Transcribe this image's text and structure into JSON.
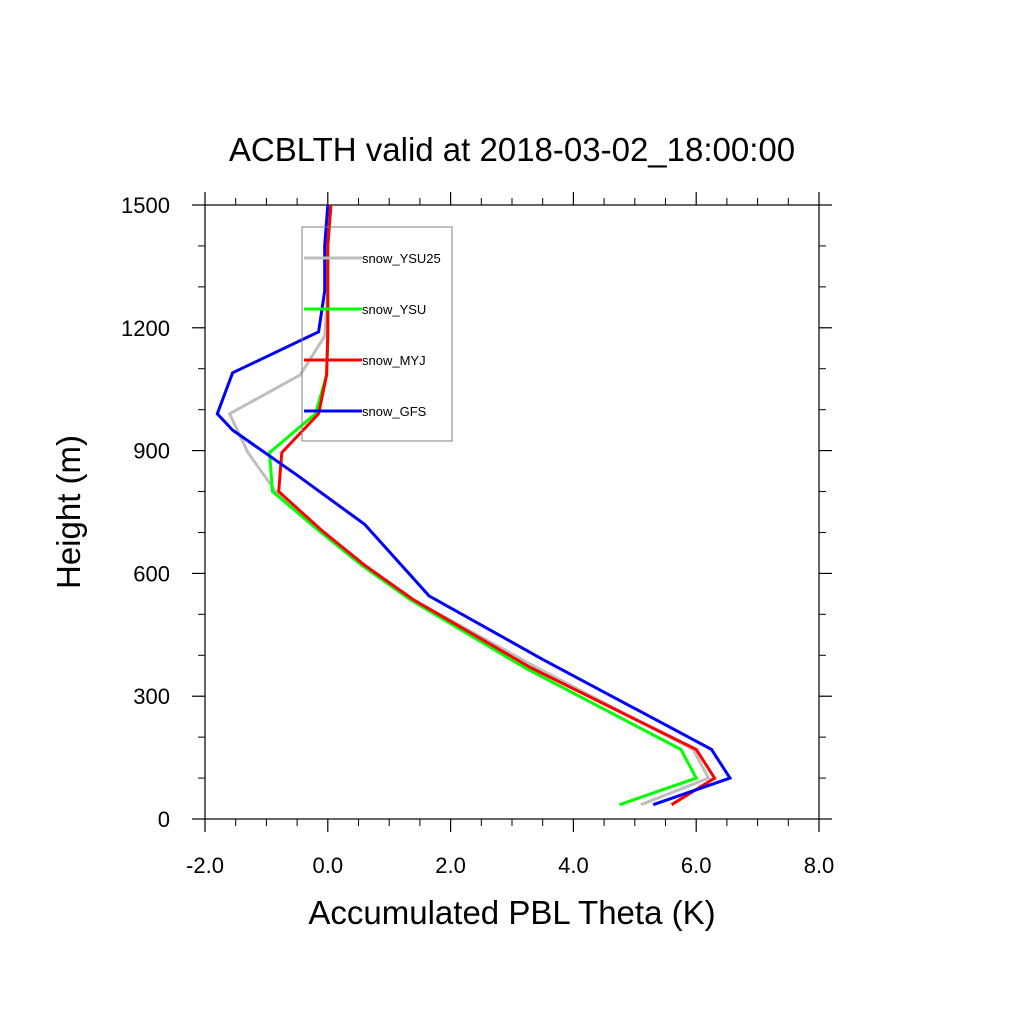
{
  "chart_data": {
    "type": "line",
    "title": "ACBLTH valid at 2018-03-02_18:00:00",
    "xlabel": "Accumulated PBL Theta (K)",
    "ylabel": "Height (m)",
    "xlim": [
      -2.0,
      8.0
    ],
    "ylim": [
      0,
      1500
    ],
    "xticks": [
      -2.0,
      0.0,
      2.0,
      4.0,
      6.0,
      8.0
    ],
    "xtick_labels": [
      "-2.0",
      "0.0",
      "2.0",
      "4.0",
      "6.0",
      "8.0"
    ],
    "yticks": [
      0,
      300,
      600,
      900,
      1200,
      1500
    ],
    "ytick_labels": [
      "0",
      "300",
      "600",
      "900",
      "1200",
      "1500"
    ],
    "grid": false,
    "legend_position": "top-left inside",
    "series": [
      {
        "name": "snow_YSU25",
        "color": "#bebebe",
        "points": [
          [
            5.1,
            35
          ],
          [
            6.2,
            100
          ],
          [
            5.95,
            170
          ],
          [
            3.4,
            370
          ],
          [
            1.4,
            535
          ],
          [
            0.6,
            620
          ],
          [
            -0.1,
            705
          ],
          [
            -0.85,
            800
          ],
          [
            -1.3,
            895
          ],
          [
            -1.6,
            990
          ],
          [
            -0.45,
            1085
          ],
          [
            -0.05,
            1180
          ],
          [
            0.0,
            1290
          ],
          [
            0.0,
            1400
          ],
          [
            0.05,
            1500
          ]
        ]
      },
      {
        "name": "snow_YSU",
        "color": "#00ff00",
        "points": [
          [
            4.75,
            35
          ],
          [
            6.0,
            100
          ],
          [
            5.75,
            170
          ],
          [
            3.2,
            370
          ],
          [
            1.35,
            535
          ],
          [
            0.55,
            620
          ],
          [
            -0.15,
            705
          ],
          [
            -0.9,
            800
          ],
          [
            -0.95,
            895
          ],
          [
            -0.2,
            990
          ],
          [
            -0.02,
            1085
          ],
          [
            0.0,
            1180
          ],
          [
            0.0,
            1290
          ],
          [
            0.0,
            1400
          ],
          [
            0.05,
            1500
          ]
        ]
      },
      {
        "name": "snow_MYJ",
        "color": "#ff0000",
        "points": [
          [
            5.6,
            35
          ],
          [
            6.3,
            100
          ],
          [
            6.0,
            170
          ],
          [
            3.3,
            370
          ],
          [
            1.4,
            535
          ],
          [
            0.6,
            620
          ],
          [
            -0.1,
            705
          ],
          [
            -0.8,
            800
          ],
          [
            -0.75,
            895
          ],
          [
            -0.15,
            990
          ],
          [
            -0.02,
            1085
          ],
          [
            0.0,
            1180
          ],
          [
            0.0,
            1290
          ],
          [
            0.0,
            1400
          ],
          [
            0.05,
            1500
          ]
        ]
      },
      {
        "name": "snow_GFS",
        "color": "#0000ff",
        "points": [
          [
            5.3,
            35
          ],
          [
            6.55,
            100
          ],
          [
            6.25,
            170
          ],
          [
            3.5,
            390
          ],
          [
            1.65,
            545
          ],
          [
            0.6,
            720
          ],
          [
            -0.5,
            840
          ],
          [
            -1.55,
            950
          ],
          [
            -1.8,
            990
          ],
          [
            -1.55,
            1090
          ],
          [
            -0.15,
            1190
          ],
          [
            -0.05,
            1290
          ],
          [
            -0.05,
            1400
          ],
          [
            0.0,
            1500
          ]
        ]
      }
    ]
  }
}
